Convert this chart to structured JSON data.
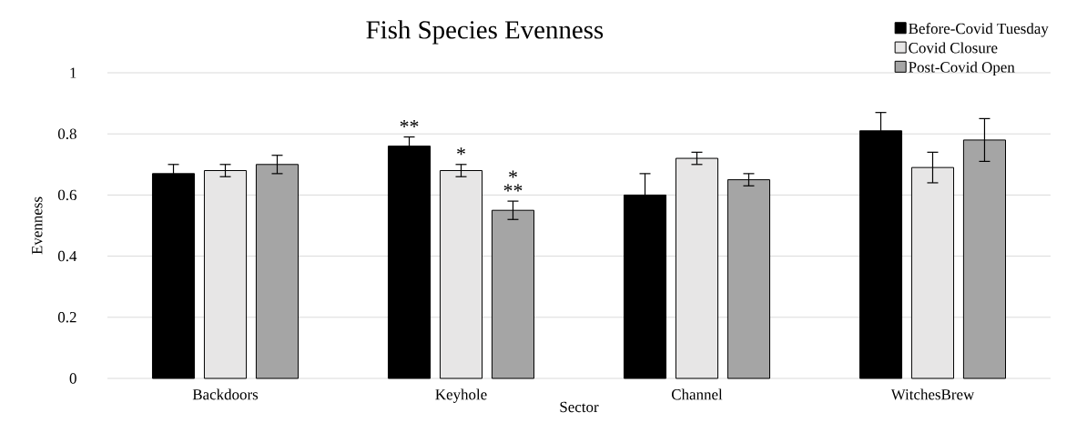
{
  "chart_data": {
    "type": "bar",
    "title": "Fish Species Evenness",
    "xlabel": "Sector",
    "ylabel": "Evenness",
    "categories": [
      "Backdoors",
      "Keyhole",
      "Channel",
      "WitchesBrew"
    ],
    "series": [
      {
        "name": "Before-Covid Tuesday",
        "color": "#000000",
        "values": [
          0.67,
          0.76,
          0.6,
          0.81
        ],
        "errors": [
          0.03,
          0.03,
          0.07,
          0.06
        ]
      },
      {
        "name": "Covid Closure",
        "color": "#e7e6e6",
        "values": [
          0.68,
          0.68,
          0.72,
          0.69
        ],
        "errors": [
          0.02,
          0.02,
          0.02,
          0.05
        ]
      },
      {
        "name": "Post-Covid Open",
        "color": "#a5a5a5",
        "values": [
          0.7,
          0.55,
          0.65,
          0.78
        ],
        "errors": [
          0.03,
          0.03,
          0.02,
          0.07
        ]
      }
    ],
    "ylim": [
      0,
      1
    ],
    "yticks": [
      0,
      0.2,
      0.4,
      0.6,
      0.8,
      1
    ],
    "grid": "y",
    "legend": "top right",
    "annotations": [
      "**",
      "*",
      "*",
      "**"
    ]
  }
}
